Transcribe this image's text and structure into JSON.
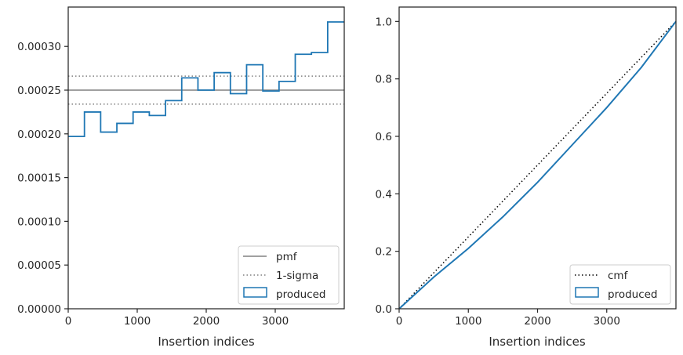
{
  "chart_data": [
    {
      "type": "line",
      "panel": "left",
      "xlabel": "Insertion indices",
      "ylabel": "",
      "xlim": [
        0,
        4000
      ],
      "ylim": [
        0,
        0.000345
      ],
      "xticks": [
        0,
        1000,
        2000,
        3000
      ],
      "xtick_labels": [
        "0",
        "1000",
        "2000",
        "3000"
      ],
      "yticks": [
        0,
        5e-05,
        0.0001,
        0.00015,
        0.0002,
        0.00025,
        0.0003
      ],
      "ytick_labels": [
        "0.00000",
        "0.00005",
        "0.00010",
        "0.00015",
        "0.00020",
        "0.00025",
        "0.00030"
      ],
      "grid": false,
      "legend_position": "lower-right",
      "series": [
        {
          "name": "pmf",
          "kind": "hline",
          "y": 0.00025,
          "color": "#808080",
          "style": "solid"
        },
        {
          "name": "1-sigma",
          "kind": "hlines",
          "y": [
            0.000234,
            0.000266
          ],
          "color": "#808080",
          "style": "dotted"
        },
        {
          "name": "produced",
          "kind": "step-histogram",
          "color": "#1f77b4",
          "bin_edges": [
            0,
            235,
            470,
            705,
            940,
            1175,
            1410,
            1645,
            1880,
            2115,
            2350,
            2585,
            2820,
            3055,
            3290,
            3525,
            3760,
            4000
          ],
          "values": [
            0.000197,
            0.000225,
            0.000202,
            0.000212,
            0.000225,
            0.000221,
            0.000238,
            0.000264,
            0.00025,
            0.00027,
            0.000246,
            0.000279,
            0.000249,
            0.00026,
            0.000291,
            0.000293,
            0.000328
          ]
        }
      ]
    },
    {
      "type": "line",
      "panel": "right",
      "xlabel": "Insertion indices",
      "ylabel": "",
      "xlim": [
        0,
        4000
      ],
      "ylim": [
        0,
        1.05
      ],
      "xticks": [
        0,
        1000,
        2000,
        3000
      ],
      "xtick_labels": [
        "0",
        "1000",
        "2000",
        "3000"
      ],
      "yticks": [
        0,
        0.2,
        0.4,
        0.6,
        0.8,
        1.0
      ],
      "ytick_labels": [
        "0.0",
        "0.2",
        "0.4",
        "0.6",
        "0.8",
        "1.0"
      ],
      "grid": false,
      "legend_position": "lower-right",
      "series": [
        {
          "name": "cmf",
          "kind": "line",
          "x": [
            0,
            4000
          ],
          "y": [
            0,
            1.0
          ],
          "color": "#000000",
          "style": "dotted"
        },
        {
          "name": "produced",
          "kind": "cumulative",
          "color": "#1f77b4",
          "x": [
            0,
            500,
            1000,
            1500,
            2000,
            2500,
            3000,
            3500,
            4000
          ],
          "y": [
            0,
            0.11,
            0.21,
            0.32,
            0.44,
            0.57,
            0.7,
            0.84,
            1.0
          ]
        }
      ]
    }
  ]
}
